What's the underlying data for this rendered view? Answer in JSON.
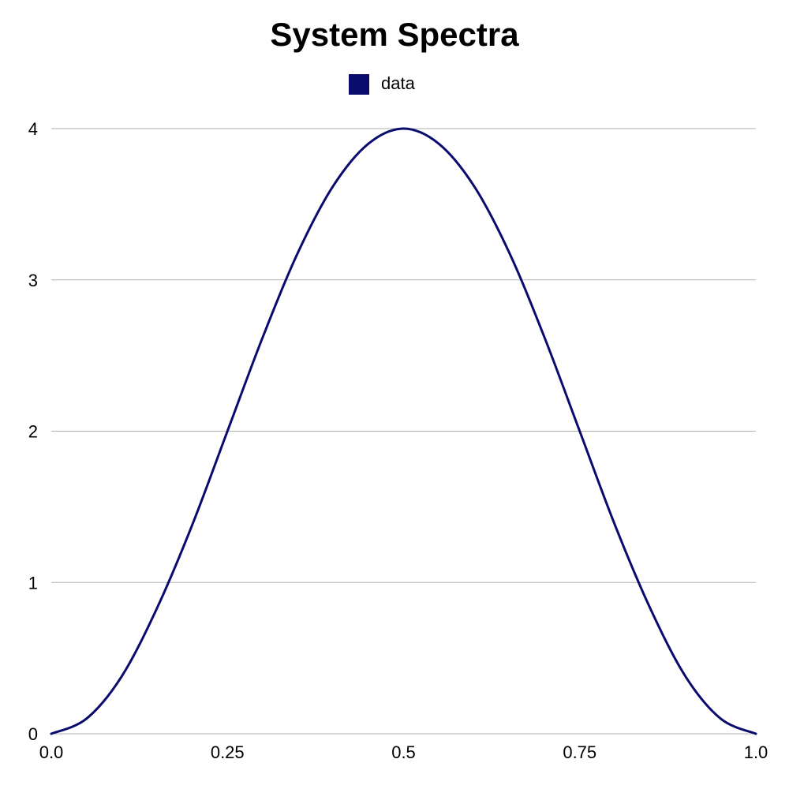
{
  "chart_data": {
    "type": "line",
    "title": "System Spectra",
    "xlabel": "",
    "ylabel": "",
    "xlim": [
      0.0,
      1.0
    ],
    "ylim": [
      0,
      4
    ],
    "x_ticks": [
      "0.0",
      "0.25",
      "0.5",
      "0.75",
      "1.0"
    ],
    "x_tick_values": [
      0.0,
      0.25,
      0.5,
      0.75,
      1.0
    ],
    "y_ticks": [
      "0",
      "1",
      "2",
      "3",
      "4"
    ],
    "y_tick_values": [
      0,
      1,
      2,
      3,
      4
    ],
    "grid": "horizontal",
    "legend_position": "top-center",
    "series": [
      {
        "name": "data",
        "color": "#0b0b6e",
        "x": [
          0.0,
          0.05,
          0.1,
          0.15,
          0.2,
          0.25,
          0.3,
          0.35,
          0.4,
          0.45,
          0.5,
          0.55,
          0.6,
          0.65,
          0.7,
          0.75,
          0.8,
          0.85,
          0.9,
          0.95,
          1.0
        ],
        "y": [
          0.0,
          0.1,
          0.38,
          0.83,
          1.38,
          2.0,
          2.62,
          3.18,
          3.62,
          3.9,
          4.0,
          3.9,
          3.62,
          3.18,
          2.62,
          2.0,
          1.38,
          0.83,
          0.38,
          0.1,
          0.0
        ]
      }
    ]
  }
}
